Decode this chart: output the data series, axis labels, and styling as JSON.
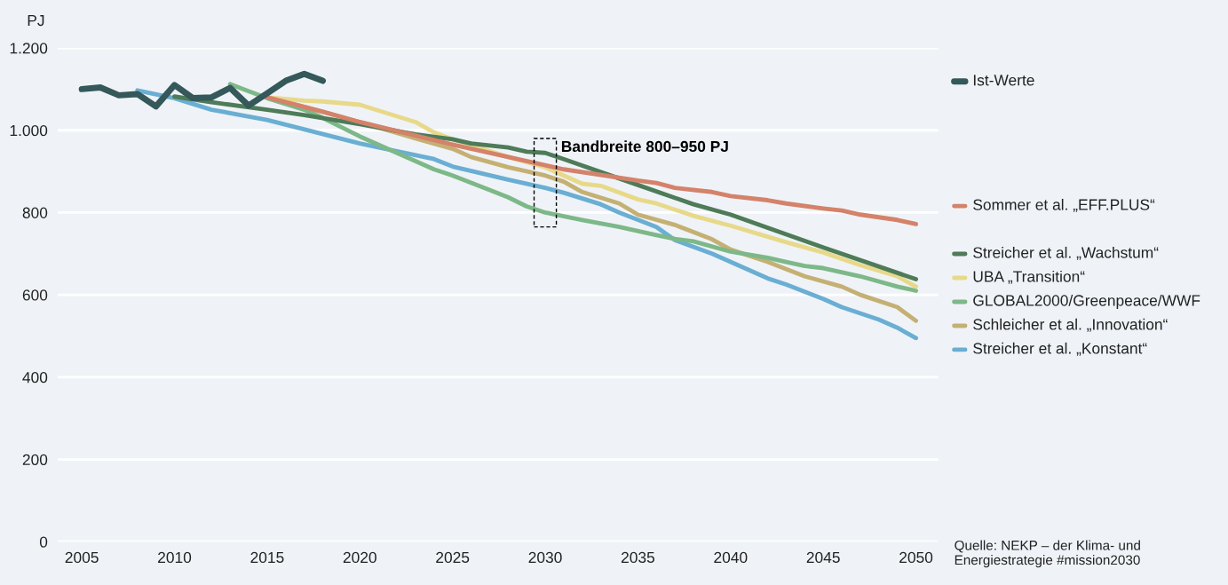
{
  "chart_data": {
    "type": "line",
    "ylabel": "PJ",
    "xlim": [
      2003.7,
      2051.2
    ],
    "xticks": [
      2005,
      2010,
      2015,
      2020,
      2025,
      2030,
      2035,
      2040,
      2045,
      2050
    ],
    "ylim": [
      0,
      1200
    ],
    "yticks": [
      0,
      200,
      400,
      600,
      800,
      {
        "value": 1000,
        "label": "1.000"
      },
      {
        "value": 1200,
        "label": "1.200"
      }
    ],
    "grid": "y",
    "legend": "right",
    "line_style": "solid",
    "marker": "none",
    "series": [
      {
        "name": "Ist-Werte",
        "color": "#35585a",
        "x": [
          2005,
          2006,
          2007,
          2008,
          2009,
          2010,
          2011,
          2012,
          2013,
          2014,
          2015,
          2016,
          2017,
          2018
        ],
        "values": [
          1100,
          1104,
          1085,
          1088,
          1058,
          1110,
          1078,
          1080,
          1103,
          1060,
          1090,
          1120,
          1137,
          1120
        ]
      },
      {
        "name": "Sommer et al. „EFF.PLUS“",
        "color": "#d4826a",
        "x": [
          2015,
          2018,
          2020,
          2025,
          2030,
          2031,
          2035,
          2036,
          2037,
          2039,
          2040,
          2042,
          2043,
          2045,
          2046,
          2047,
          2049,
          2050
        ],
        "values": [
          1080,
          1045,
          1020,
          965,
          915,
          905,
          878,
          872,
          860,
          850,
          840,
          830,
          822,
          810,
          805,
          795,
          782,
          772
        ]
      },
      {
        "name": "Streicher et al. „Wachstum“",
        "color": "#4e7b58",
        "x": [
          2010,
          2012,
          2015,
          2017,
          2020,
          2023,
          2025,
          2026,
          2028,
          2029,
          2030,
          2031,
          2035,
          2038,
          2040,
          2045,
          2050
        ],
        "values": [
          1082,
          1068,
          1050,
          1037,
          1015,
          990,
          978,
          968,
          958,
          948,
          945,
          930,
          867,
          820,
          795,
          715,
          638
        ]
      },
      {
        "name": "UBA „Transition“",
        "color": "#e8d98a",
        "x": [
          2015,
          2017,
          2018,
          2020,
          2023,
          2024,
          2025,
          2028,
          2030,
          2032,
          2033,
          2035,
          2036,
          2038,
          2040,
          2043,
          2045,
          2047,
          2049,
          2050
        ],
        "values": [
          1080,
          1072,
          1070,
          1062,
          1020,
          995,
          978,
          935,
          910,
          870,
          865,
          832,
          822,
          792,
          768,
          728,
          703,
          672,
          645,
          620
        ]
      },
      {
        "name": "GLOBAL2000/Greenpeace/WWF",
        "color": "#7db888",
        "x": [
          2013,
          2014,
          2015,
          2017,
          2018,
          2020,
          2022,
          2024,
          2025,
          2027,
          2028,
          2029,
          2030,
          2032,
          2034,
          2036,
          2037,
          2038,
          2040,
          2042,
          2043,
          2044,
          2045,
          2047,
          2049,
          2050
        ],
        "values": [
          1112,
          1095,
          1078,
          1050,
          1030,
          985,
          945,
          905,
          890,
          855,
          837,
          815,
          800,
          782,
          765,
          745,
          736,
          730,
          705,
          690,
          680,
          670,
          665,
          645,
          620,
          610
        ]
      },
      {
        "name": "Schleicher et al. „Innovation“",
        "color": "#c5b074",
        "x": [
          2015,
          2018,
          2020,
          2023,
          2025,
          2026,
          2028,
          2030,
          2031,
          2032,
          2034,
          2035,
          2037,
          2039,
          2040,
          2042,
          2044,
          2046,
          2047,
          2049,
          2050
        ],
        "values": [
          1080,
          1045,
          1020,
          980,
          955,
          935,
          910,
          890,
          875,
          850,
          822,
          795,
          770,
          735,
          710,
          680,
          645,
          620,
          600,
          570,
          537
        ]
      },
      {
        "name": "Streicher et al. „Konstant“",
        "color": "#6aaed3",
        "x": [
          2008,
          2010,
          2012,
          2015,
          2020,
          2024,
          2025,
          2028,
          2030,
          2031,
          2033,
          2034,
          2036,
          2037,
          2039,
          2040,
          2042,
          2043,
          2045,
          2046,
          2048,
          2049,
          2050
        ],
        "values": [
          1097,
          1078,
          1050,
          1025,
          968,
          930,
          912,
          880,
          860,
          848,
          820,
          800,
          765,
          733,
          700,
          680,
          640,
          625,
          590,
          570,
          540,
          520,
          495
        ]
      }
    ],
    "annotations": [
      {
        "text": "Bandbreite 800–950 PJ",
        "x": 2030,
        "y": 940
      },
      "Quelle: NEKP – der Klima- und Energiestrategie #mission2030"
    ]
  }
}
